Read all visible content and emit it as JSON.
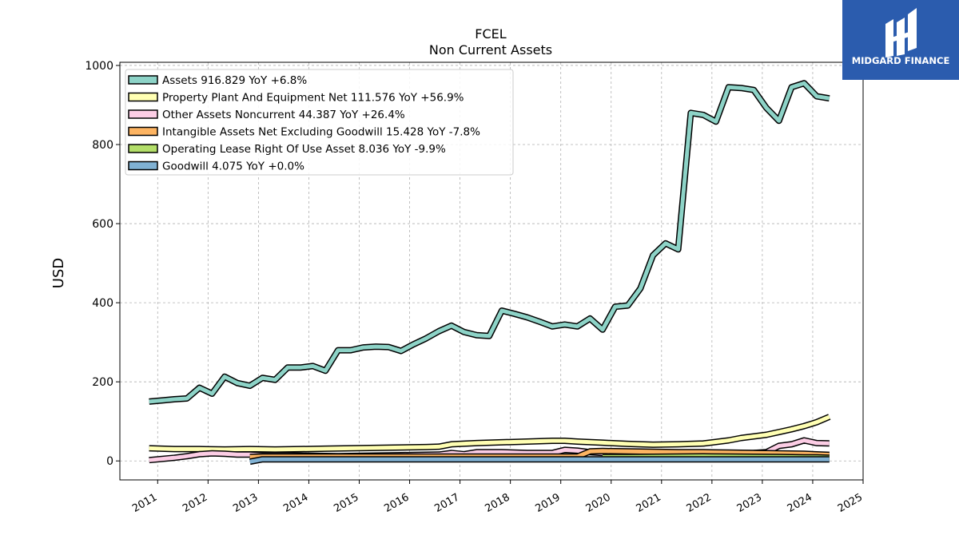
{
  "chart_data": {
    "type": "line",
    "title": "FCEL",
    "subtitle": "Non Current  Assets",
    "ylabel": "USD",
    "xlim": [
      2010.25,
      2025.0
    ],
    "ylim": [
      -48,
      1008
    ],
    "yticks": [
      0,
      200,
      400,
      600,
      800,
      1000
    ],
    "xticks": [
      "2011",
      "2012",
      "2013",
      "2014",
      "2015",
      "2016",
      "2017",
      "2018",
      "2019",
      "2020",
      "2021",
      "2022",
      "2023",
      "2024",
      "2025"
    ],
    "grid": true,
    "legend_position": "top-left",
    "series": [
      {
        "name": "Assets",
        "legend": "Assets  916.829 YoY +6.8%",
        "color": "#8dd3c7",
        "x": [
          2010.83,
          2011.08,
          2011.33,
          2011.58,
          2011.83,
          2012.08,
          2012.33,
          2012.58,
          2012.83,
          2013.08,
          2013.33,
          2013.58,
          2013.83,
          2014.08,
          2014.33,
          2014.58,
          2014.83,
          2015.08,
          2015.33,
          2015.58,
          2015.83,
          2016.08,
          2016.33,
          2016.58,
          2016.83,
          2017.08,
          2017.33,
          2017.58,
          2017.83,
          2018.08,
          2018.33,
          2018.58,
          2018.83,
          2019.08,
          2019.33,
          2019.58,
          2019.83,
          2020.08,
          2020.33,
          2020.58,
          2020.83,
          2021.08,
          2021.33,
          2021.58,
          2021.83,
          2022.08,
          2022.33,
          2022.58,
          2022.83,
          2023.08,
          2023.33,
          2023.58,
          2023.83,
          2024.08,
          2024.33
        ],
        "y": [
          150,
          153,
          156,
          158,
          185,
          170,
          213,
          197,
          190,
          210,
          205,
          236,
          236,
          240,
          228,
          280,
          280,
          287,
          289,
          288,
          278,
          295,
          310,
          328,
          342,
          326,
          318,
          316,
          380,
          372,
          363,
          352,
          340,
          345,
          340,
          360,
          332,
          390,
          393,
          436,
          520,
          550,
          535,
          880,
          875,
          858,
          945,
          943,
          938,
          893,
          860,
          945,
          955,
          922,
          916.829
        ]
      },
      {
        "name": "Property Plant And Equipment Net",
        "legend": "Property Plant And Equipment Net  111.576 YoY +56.9%",
        "color": "#ffffb3",
        "x": [
          2010.83,
          2011.33,
          2011.83,
          2012.33,
          2012.83,
          2013.33,
          2013.83,
          2014.33,
          2014.83,
          2015.33,
          2015.83,
          2016.33,
          2016.58,
          2016.83,
          2017.33,
          2017.83,
          2018.33,
          2018.83,
          2019.08,
          2019.33,
          2019.83,
          2020.33,
          2020.83,
          2021.33,
          2021.83,
          2022.33,
          2022.58,
          2022.83,
          2023.08,
          2023.33,
          2023.58,
          2023.83,
          2024.08,
          2024.33
        ],
        "y": [
          32,
          30,
          30,
          29,
          30,
          29,
          30,
          31,
          32,
          33,
          34,
          35,
          36,
          42,
          45,
          47,
          49,
          51,
          51,
          49,
          46,
          43,
          41,
          42,
          44,
          52,
          58,
          62,
          66,
          73,
          80,
          88,
          98,
          111.576
        ]
      },
      {
        "name": "Other Assets Noncurrent",
        "legend": "Other Assets Noncurrent  44.387 YoY +26.4%",
        "color": "#fccde5",
        "x": [
          2010.83,
          2011.33,
          2011.58,
          2011.83,
          2012.08,
          2012.33,
          2012.58,
          2012.83,
          2013.08,
          2013.58,
          2014.08,
          2014.58,
          2015.08,
          2015.58,
          2016.08,
          2016.58,
          2016.83,
          2017.08,
          2017.33,
          2017.83,
          2018.33,
          2018.83,
          2019.08,
          2019.33,
          2019.58,
          2019.83,
          2020.33,
          2020.83,
          2021.33,
          2021.83,
          2022.33,
          2022.83,
          2023.08,
          2023.33,
          2023.58,
          2023.83,
          2024.08,
          2024.33
        ],
        "y": [
          2,
          8,
          12,
          17,
          19,
          18,
          16,
          16,
          14,
          14,
          13,
          12,
          13,
          14,
          15,
          16,
          20,
          17,
          22,
          22,
          20,
          20,
          28,
          26,
          22,
          20,
          20,
          19,
          19,
          19,
          19,
          20,
          22,
          38,
          42,
          52,
          45,
          44.387
        ]
      },
      {
        "name": "Intangible Assets Net Excluding Goodwill",
        "legend": "Intangible Assets Net Excluding Goodwill  15.428 YoY -7.8%",
        "color": "#fdb462",
        "x": [
          2012.83,
          2013.08,
          2013.58,
          2014.08,
          2014.58,
          2015.08,
          2015.58,
          2016.08,
          2016.58,
          2017.08,
          2017.58,
          2018.08,
          2018.58,
          2019.08,
          2019.33,
          2019.58,
          2019.83,
          2020.33,
          2020.83,
          2021.33,
          2021.83,
          2022.33,
          2022.83,
          2023.33,
          2023.83,
          2024.08,
          2024.33
        ],
        "y": [
          10,
          11,
          11,
          11,
          11,
          11,
          11,
          11,
          11,
          11,
          11,
          11,
          11,
          11,
          11,
          24,
          25,
          24,
          23,
          22,
          22,
          21,
          20,
          19,
          18,
          16.7,
          15.428
        ]
      },
      {
        "name": "Operating Lease Right Of Use Asset",
        "legend": "Operating Lease Right Of Use Asset  8.036 YoY -9.9%",
        "color": "#b3de69",
        "x": [
          2019.83,
          2020.33,
          2020.83,
          2021.33,
          2021.83,
          2022.33,
          2022.83,
          2023.33,
          2023.83,
          2024.08,
          2024.33
        ],
        "y": [
          10,
          10,
          10.5,
          11,
          11.5,
          11,
          10.5,
          10,
          9,
          8.9,
          8.036
        ]
      },
      {
        "name": "Goodwill",
        "legend": "Goodwill  4.075 YoY +0.0%",
        "color": "#80b1d3",
        "x": [
          2012.83,
          2013.08,
          2024.33
        ],
        "y": [
          -2,
          4.075,
          4.075
        ]
      }
    ]
  },
  "watermark": {
    "brand": "MIDGARD FINANCE",
    "background": "#2b5cae"
  }
}
